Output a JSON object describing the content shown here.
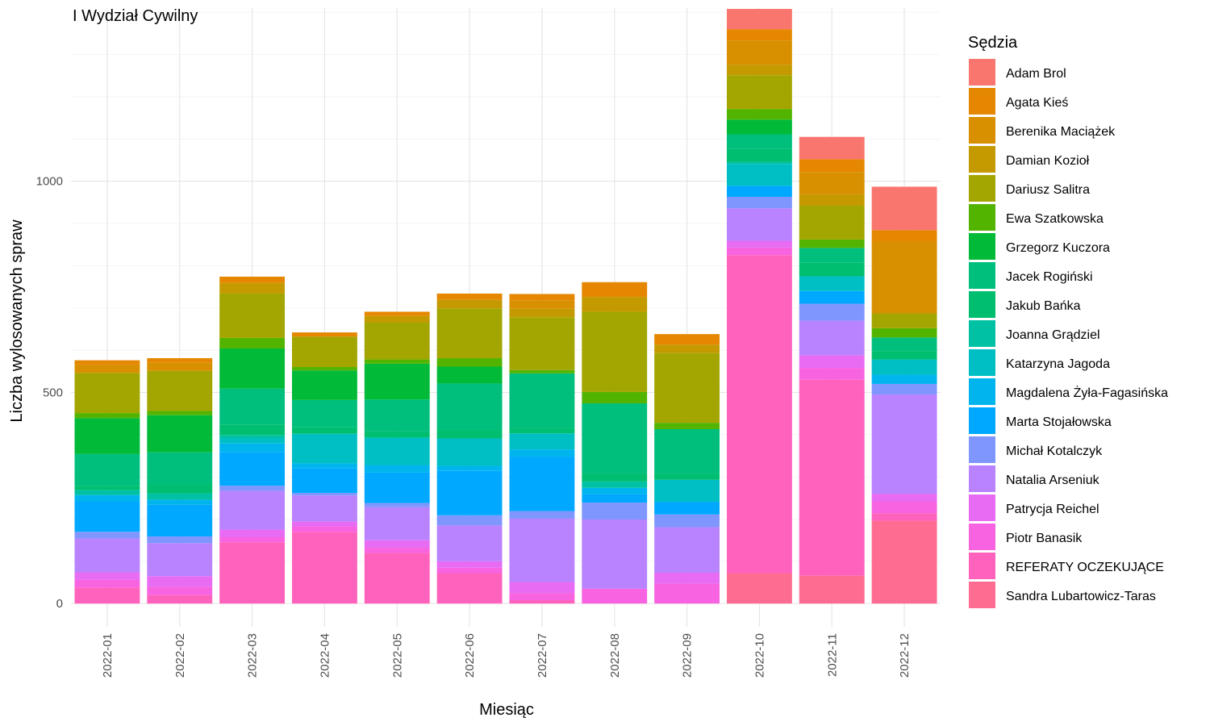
{
  "chart_data": {
    "type": "bar",
    "stacked": true,
    "title": "I Wydział Cywilny",
    "xlabel": "Miesiąc",
    "ylabel": "Liczba wylosowanych spraw",
    "ylim": [
      -55,
      1410
    ],
    "yticks": [
      0,
      500,
      1000
    ],
    "grid": true,
    "legend_title": "Sędzia",
    "legend_position": "right",
    "categories": [
      "2022-01",
      "2022-02",
      "2022-03",
      "2022-04",
      "2022-05",
      "2022-06",
      "2022-07",
      "2022-08",
      "2022-09",
      "2022-10",
      "2022-11",
      "2022-12"
    ],
    "series": [
      {
        "name": "Sandra Lubartowicz-Taras",
        "color": "#FF6C91",
        "values": [
          0,
          0,
          0,
          0,
          0,
          0,
          0,
          0,
          0,
          72,
          66,
          196
        ]
      },
      {
        "name": "REFERATY OCZEKUJĄCE",
        "color": "#FF62BC",
        "values": [
          38,
          20,
          145,
          170,
          120,
          72,
          8,
          0,
          0,
          753,
          464,
          18
        ]
      },
      {
        "name": "Piotr Banasik",
        "color": "#F763E0",
        "values": [
          18,
          20,
          12,
          12,
          12,
          13,
          17,
          35,
          47,
          18,
          28,
          28
        ]
      },
      {
        "name": "Patrycja Reichel",
        "color": "#E76BF3",
        "values": [
          18,
          25,
          18,
          12,
          18,
          15,
          26,
          0,
          26,
          16,
          30,
          18
        ]
      },
      {
        "name": "Natalia Arseniuk",
        "color": "#B983FF",
        "values": [
          80,
          78,
          92,
          62,
          78,
          85,
          150,
          164,
          108,
          77,
          82,
          235
        ]
      },
      {
        "name": "Michał Kotalczyk",
        "color": "#7F96FF",
        "values": [
          16,
          16,
          12,
          6,
          10,
          24,
          18,
          40,
          30,
          27,
          40,
          25
        ]
      },
      {
        "name": "Marta Stojałowska",
        "color": "#00A9FF",
        "values": [
          72,
          75,
          80,
          58,
          72,
          105,
          128,
          20,
          30,
          26,
          30,
          0
        ]
      },
      {
        "name": "Magdalena Żyła-Fagasińska",
        "color": "#00B5EE",
        "values": [
          15,
          12,
          20,
          12,
          18,
          12,
          18,
          15,
          0,
          0,
          0,
          22
        ]
      },
      {
        "name": "Katarzyna Jagoda",
        "color": "#00BFC4",
        "values": [
          0,
          0,
          12,
          70,
          65,
          65,
          38,
          0,
          52,
          52,
          35,
          36
        ]
      },
      {
        "name": "Joanna Grądziel",
        "color": "#00C1A3",
        "values": [
          12,
          15,
          8,
          0,
          0,
          0,
          0,
          15,
          0,
          5,
          0,
          0
        ]
      },
      {
        "name": "Jakub Bańka",
        "color": "#00BE70",
        "values": [
          10,
          22,
          25,
          15,
          15,
          20,
          12,
          20,
          15,
          30,
          33,
          20
        ]
      },
      {
        "name": "Jacek Rogiński",
        "color": "#00BF7D",
        "values": [
          75,
          75,
          85,
          65,
          75,
          110,
          130,
          165,
          105,
          35,
          34,
          32
        ]
      },
      {
        "name": "Grzegorz Kuczora",
        "color": "#00BA38",
        "values": [
          85,
          88,
          95,
          70,
          85,
          40,
          0,
          0,
          0,
          35,
          0,
          0
        ]
      },
      {
        "name": "Ewa Szatkowska",
        "color": "#53B400",
        "values": [
          12,
          10,
          25,
          8,
          10,
          20,
          8,
          27,
          15,
          25,
          20,
          22
        ]
      },
      {
        "name": "Dariusz Salitra",
        "color": "#A3A500",
        "values": [
          95,
          95,
          105,
          72,
          88,
          118,
          125,
          190,
          165,
          80,
          80,
          35
        ]
      },
      {
        "name": "Damian Kozioł",
        "color": "#C49A00",
        "values": [
          0,
          0,
          25,
          0,
          15,
          20,
          20,
          35,
          20,
          25,
          27,
          0
        ]
      },
      {
        "name": "Berenika Maciążek",
        "color": "#D89000",
        "values": [
          20,
          20,
          0,
          0,
          0,
          0,
          20,
          0,
          0,
          57,
          53,
          170
        ]
      },
      {
        "name": "Agata Kieś",
        "color": "#E58700",
        "values": [
          10,
          10,
          15,
          10,
          10,
          15,
          15,
          35,
          25,
          27,
          30,
          27
        ]
      },
      {
        "name": "Adam Brol",
        "color": "#F8766D",
        "values": [
          0,
          0,
          0,
          0,
          0,
          0,
          0,
          0,
          0,
          48,
          53,
          103
        ]
      }
    ]
  }
}
